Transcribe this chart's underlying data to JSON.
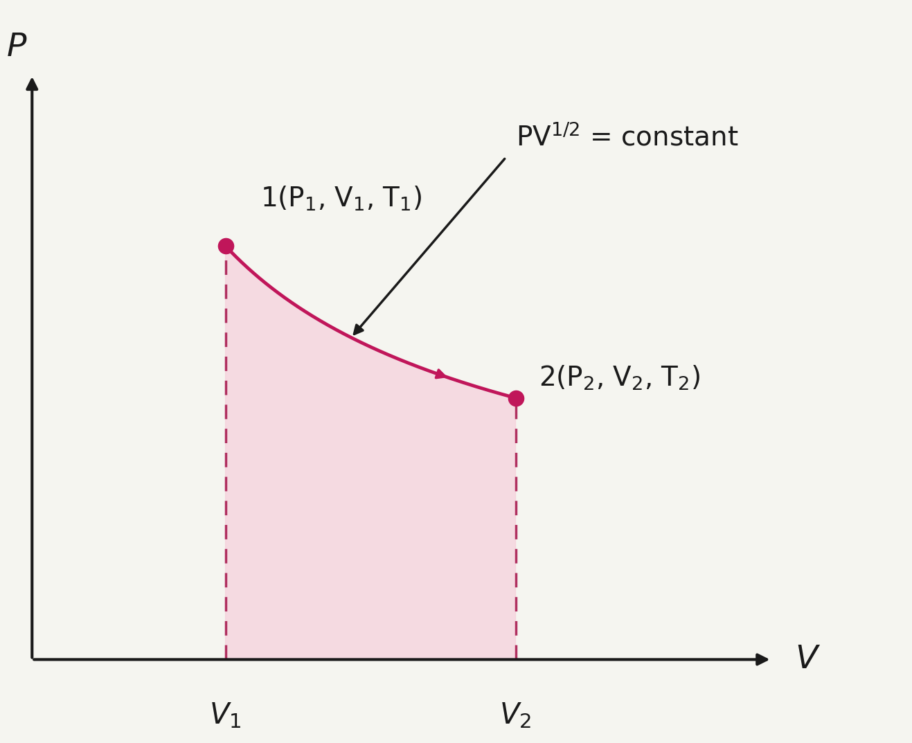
{
  "background_color": "#f5f5f0",
  "plot_bg_color": "#f5f5f0",
  "curve_color": "#c0165a",
  "fill_color": "#f5c5d5",
  "fill_alpha": 0.55,
  "dashed_color": "#b03060",
  "axis_color": "#1a1a1a",
  "text_color": "#1a1a1a",
  "point_color": "#c0165a",
  "arrow_color": "#1a1a1a",
  "V1": 1.0,
  "V2": 2.5,
  "P1": 3.5,
  "xlim": [
    0.0,
    4.5
  ],
  "ylim": [
    -0.5,
    5.5
  ],
  "xlabel": "V",
  "ylabel": "P",
  "label1": "1(P$_1$, V$_1$, T$_1$)",
  "label2": "2(P$_2$, V$_2$, T$_2$)",
  "eq_label": "PV$^{1/2}$ = constant",
  "V1_label": "V$_1$",
  "V2_label": "V$_2$",
  "figsize": [
    13.17,
    10.73
  ],
  "dpi": 100
}
